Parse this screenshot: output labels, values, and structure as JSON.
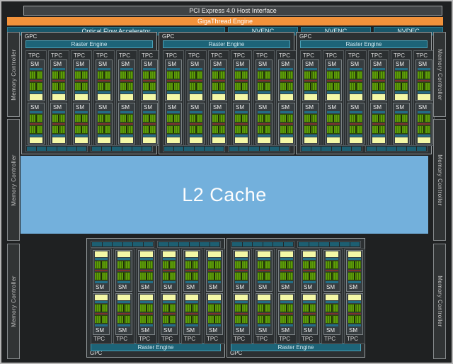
{
  "header": {
    "pci": "PCI Express 4.0 Host Interface",
    "gigathread": "GigaThread Engine",
    "ofa": "Optical Flow Accelerator",
    "media": [
      "NVENC",
      "NVENC",
      "NVDEC"
    ]
  },
  "labels": {
    "gpc": "GPC",
    "raster_engine": "Raster Engine",
    "tpc": "TPC",
    "sm": "SM",
    "l2_cache": "L2 Cache",
    "memory_controller": "Memory Controller"
  },
  "structure": {
    "top_gpc_count": 3,
    "bottom_gpc_count": 2,
    "tpcs_per_gpc": 6,
    "sms_per_tpc": 2,
    "rop_groups_per_gpc": 2,
    "rop_cells_per_group": 6,
    "memory_segments_per_side": 3
  },
  "colors": {
    "orange": "#f2923b",
    "media_teal": "#19576a",
    "media_teal_border": "#2e7f95",
    "raster_teal": "#1d6478",
    "raster_border": "#4aa0b6",
    "l2_blue": "#73b0dc",
    "sm_green": "#5d9d08",
    "sm_green_dark": "#3f6b06",
    "sm_yellow": "#f4f8a6",
    "sm_red": "#7e322a",
    "sm_teal": "#236e86",
    "rop_teal": "#1d5f72"
  }
}
